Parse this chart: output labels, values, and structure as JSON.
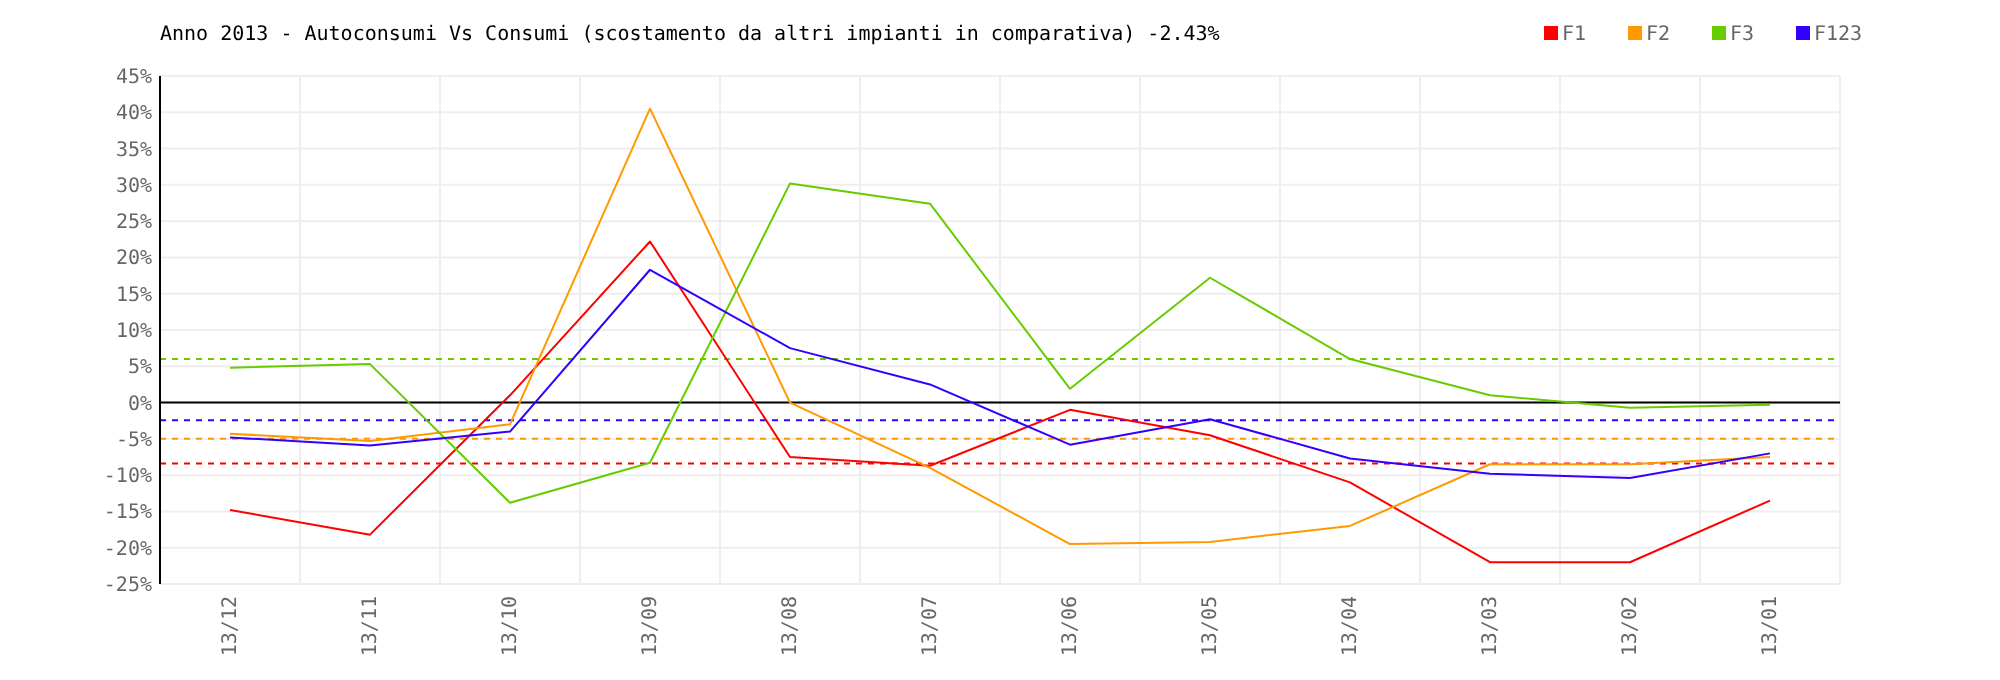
{
  "chart_data": {
    "type": "line",
    "title": "Anno 2013 - Autoconsumi Vs Consumi (scostamento da altri impianti in comparativa) -2.43%",
    "categories": [
      "13/12",
      "13/11",
      "13/10",
      "13/09",
      "13/08",
      "13/07",
      "13/06",
      "13/05",
      "13/04",
      "13/03",
      "13/02",
      "13/01"
    ],
    "series": [
      {
        "name": "F1",
        "color": "#ff0000",
        "values": [
          -14.8,
          -18.2,
          1,
          22.2,
          -7.5,
          -8.7,
          -1,
          -4.5,
          -11,
          -22,
          -22,
          -13.5
        ]
      },
      {
        "name": "F2",
        "color": "#ff9900",
        "values": [
          -4.3,
          -5.3,
          -3,
          40.5,
          0,
          -9,
          -19.5,
          -19.2,
          -17,
          -8.5,
          -8.5,
          -7.5
        ]
      },
      {
        "name": "F3",
        "color": "#66cc00",
        "values": [
          4.8,
          5.3,
          -13.8,
          -8.3,
          30.2,
          27.4,
          1.9,
          17.2,
          6,
          1,
          -0.7,
          -0.3
        ]
      },
      {
        "name": "F123",
        "color": "#3300ff",
        "values": [
          -4.8,
          -5.9,
          -4,
          18.3,
          7.5,
          2.5,
          -5.8,
          -2.3,
          -7.7,
          -9.8,
          -10.4,
          -7
        ]
      }
    ],
    "ylim": [
      -25,
      45
    ],
    "yticks": [
      {
        "value": -25,
        "label": "-25%"
      },
      {
        "value": -20,
        "label": "-20%"
      },
      {
        "value": -15,
        "label": "-15%"
      },
      {
        "value": -10,
        "label": "-10%"
      },
      {
        "value": -5,
        "label": "-5%"
      },
      {
        "value": 0,
        "label": "0%"
      },
      {
        "value": 5,
        "label": "5%"
      },
      {
        "value": 10,
        "label": "10%"
      },
      {
        "value": 15,
        "label": "15%"
      },
      {
        "value": 20,
        "label": "20%"
      },
      {
        "value": 25,
        "label": "25%"
      },
      {
        "value": 30,
        "label": "30%"
      },
      {
        "value": 35,
        "label": "35%"
      },
      {
        "value": 40,
        "label": "40%"
      },
      {
        "value": 45,
        "label": "45%"
      }
    ],
    "ref_lines": [
      {
        "axis": "y",
        "value": 0,
        "color": "#000000",
        "line_style": "solid"
      },
      {
        "axis": "y",
        "value": 6,
        "color": "#66cc00",
        "line_style": "dashed"
      },
      {
        "axis": "y",
        "value": -2.43,
        "color": "#3300ff",
        "line_style": "dashed"
      },
      {
        "axis": "y",
        "value": -5,
        "color": "#ff9900",
        "line_style": "dashed"
      },
      {
        "axis": "y",
        "value": -8.4,
        "color": "#ff0000",
        "line_style": "dashed"
      }
    ],
    "grid": true,
    "legend": "top right",
    "marker": "none",
    "line_style": "solid"
  }
}
